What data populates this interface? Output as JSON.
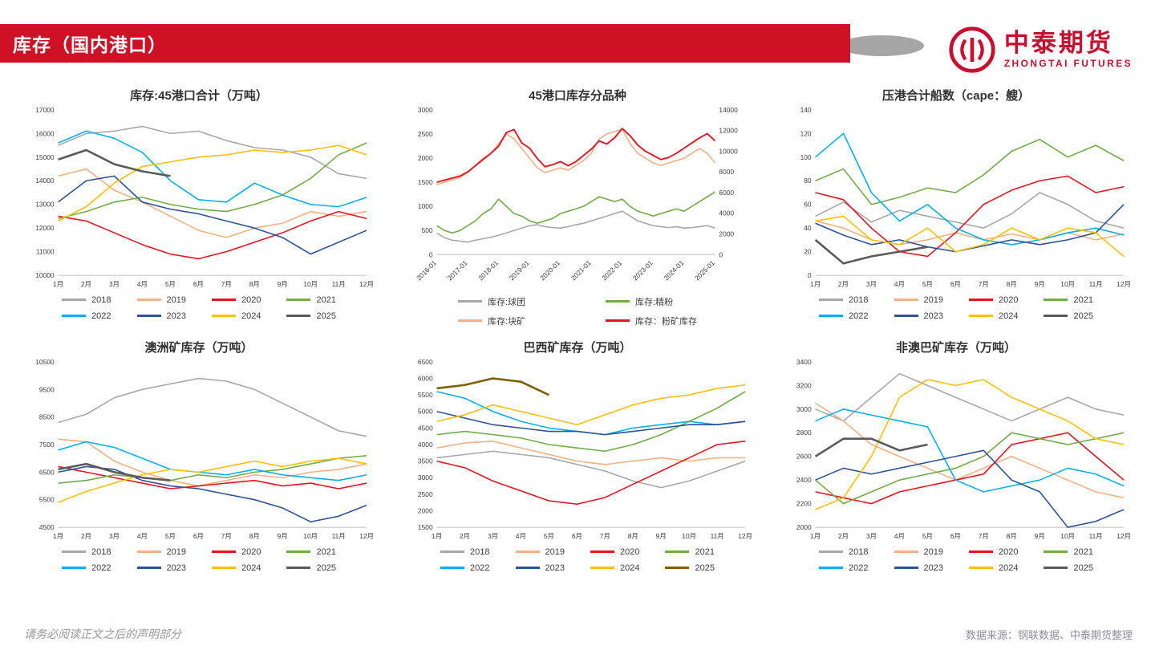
{
  "header": {
    "title": "库存（国内港口）",
    "brand_red": "#cf1125"
  },
  "logo": {
    "name_cn": "中泰期货",
    "name_en": "ZHONGTAI FUTURES",
    "color": "#c8102e"
  },
  "footer": {
    "disclaimer": "请务必阅读正文之后的声明部分",
    "source": "数据来源：钢联数据、中泰期货整理"
  },
  "chart_data": [
    {
      "id": "chart-45ports-total",
      "type": "line",
      "title": "库存:45港口合计（万吨）",
      "ylim": [
        10000,
        17000
      ],
      "y_ticks": [
        10000,
        11000,
        12000,
        13000,
        14000,
        15000,
        16000,
        17000
      ],
      "x_count": 12,
      "x_tick_labels": [
        "1月",
        "2月",
        "3月",
        "4月",
        "5月",
        "6月",
        "7月",
        "8月",
        "9月",
        "10月",
        "11月",
        "12月"
      ],
      "legend_cols": 4,
      "series": [
        {
          "name": "2018",
          "color": "#a8a8a8",
          "values": [
            15500,
            16000,
            16100,
            16300,
            16000,
            16100,
            15700,
            15400,
            15300,
            15000,
            14300,
            14100
          ]
        },
        {
          "name": "2019",
          "color": "#f4b183",
          "values": [
            14200,
            14500,
            13600,
            13100,
            12500,
            11900,
            11600,
            12000,
            12200,
            12700,
            12500,
            12700
          ]
        },
        {
          "name": "2020",
          "color": "#e8131f",
          "values": [
            12500,
            12300,
            11800,
            11300,
            10900,
            10700,
            11000,
            11400,
            11800,
            12300,
            12700,
            12400
          ]
        },
        {
          "name": "2021",
          "color": "#70ad47",
          "values": [
            12400,
            12700,
            13100,
            13300,
            13000,
            12800,
            12700,
            13000,
            13400,
            14100,
            15100,
            15600
          ]
        },
        {
          "name": "2022",
          "color": "#00b0f0",
          "values": [
            15600,
            16100,
            15800,
            15200,
            14000,
            13200,
            13100,
            13900,
            13400,
            13000,
            12900,
            13300
          ]
        },
        {
          "name": "2023",
          "color": "#2e5496",
          "values": [
            13100,
            14000,
            14200,
            13100,
            12800,
            12600,
            12300,
            12000,
            11600,
            10900,
            11400,
            11900
          ]
        },
        {
          "name": "2024",
          "color": "#ffc000",
          "values": [
            12300,
            12900,
            13900,
            14600,
            14800,
            15000,
            15100,
            15300,
            15200,
            15300,
            15500,
            15100
          ]
        },
        {
          "name": "2025",
          "color": "#5a5a5a",
          "width": 2.6,
          "values": [
            14900,
            15300,
            14700,
            14400,
            14200
          ]
        }
      ]
    },
    {
      "id": "chart-45ports-by-variety",
      "type": "line",
      "title": "45港口库存分品种",
      "ylim": [
        0,
        3000
      ],
      "y_ticks": [
        0,
        500,
        1000,
        1500,
        2000,
        2500,
        3000
      ],
      "y2lim": [
        0,
        14000
      ],
      "y2_ticks": [
        0,
        2000,
        4000,
        6000,
        8000,
        10000,
        12000,
        14000
      ],
      "x_count": 37,
      "x_tick_indices": [
        0,
        4,
        8,
        12,
        16,
        20,
        24,
        28,
        32,
        36
      ],
      "x_tick_labels": [
        "2016-01",
        "2017-01",
        "2018-01",
        "2019-01",
        "2020-01",
        "2021-01",
        "2022-01",
        "2023-01",
        "2024-01",
        "2025-01"
      ],
      "x_tick_rotate": 45,
      "legend_cols": 2,
      "series": [
        {
          "name": "库存:球团",
          "color": "#a8a8a8",
          "values": [
            450,
            350,
            300,
            280,
            260,
            300,
            330,
            360,
            400,
            450,
            500,
            550,
            600,
            620,
            580,
            560,
            550,
            580,
            620,
            650,
            700,
            750,
            800,
            850,
            900,
            800,
            700,
            650,
            600,
            580,
            560,
            580,
            550,
            560,
            580,
            600,
            550
          ]
        },
        {
          "name": "库存:精粉",
          "color": "#70ad47",
          "values": [
            600,
            500,
            450,
            500,
            600,
            700,
            850,
            950,
            1150,
            1000,
            850,
            800,
            700,
            650,
            700,
            750,
            850,
            900,
            950,
            1000,
            1100,
            1200,
            1150,
            1100,
            1150,
            1000,
            900,
            850,
            800,
            850,
            900,
            950,
            900,
            1000,
            1100,
            1200,
            1300
          ]
        },
        {
          "name": "库存:块矿",
          "color": "#f4b183",
          "values": [
            1450,
            1500,
            1550,
            1600,
            1700,
            1850,
            2000,
            2100,
            2300,
            2500,
            2400,
            2200,
            2000,
            1800,
            1700,
            1750,
            1800,
            1750,
            1850,
            1950,
            2100,
            2400,
            2500,
            2550,
            2600,
            2300,
            2100,
            2000,
            1900,
            1850,
            1900,
            1950,
            2000,
            2100,
            2200,
            2100,
            1900
          ]
        },
        {
          "name": "库存：粉矿库存",
          "color": "#e8131f",
          "axis": "right",
          "width": 1.9,
          "values": [
            7000,
            7200,
            7400,
            7600,
            8000,
            8600,
            9200,
            9800,
            10500,
            11800,
            12100,
            10800,
            10300,
            9300,
            8500,
            8700,
            9000,
            8600,
            9000,
            9600,
            10200,
            11000,
            10700,
            11300,
            12200,
            11500,
            10600,
            10000,
            9600,
            9200,
            9400,
            9800,
            10300,
            10800,
            11300,
            11700,
            11000
          ]
        }
      ]
    },
    {
      "id": "chart-cape-ships",
      "type": "line",
      "title": "压港合计船数（cape：艘）",
      "ylim": [
        0,
        140
      ],
      "y_ticks": [
        0,
        20,
        40,
        60,
        80,
        100,
        120,
        140
      ],
      "x_count": 12,
      "x_tick_labels": [
        "1月",
        "2月",
        "3月",
        "4月",
        "5月",
        "6月",
        "7月",
        "8月",
        "9月",
        "10月",
        "11月",
        "12月"
      ],
      "legend_cols": 4,
      "series": [
        {
          "name": "2018",
          "color": "#a8a8a8",
          "values": [
            50,
            62,
            45,
            55,
            50,
            45,
            40,
            52,
            70,
            60,
            46,
            40
          ]
        },
        {
          "name": "2019",
          "color": "#f4b183",
          "values": [
            46,
            40,
            30,
            26,
            30,
            36,
            30,
            35,
            30,
            36,
            30,
            35
          ]
        },
        {
          "name": "2020",
          "color": "#e8131f",
          "values": [
            70,
            64,
            40,
            20,
            16,
            36,
            60,
            72,
            80,
            84,
            70,
            75
          ]
        },
        {
          "name": "2021",
          "color": "#70ad47",
          "values": [
            80,
            90,
            60,
            66,
            74,
            70,
            85,
            105,
            115,
            100,
            110,
            97
          ]
        },
        {
          "name": "2022",
          "color": "#00b0f0",
          "values": [
            100,
            120,
            70,
            46,
            60,
            40,
            30,
            26,
            30,
            36,
            40,
            34
          ]
        },
        {
          "name": "2023",
          "color": "#2e5496",
          "values": [
            44,
            34,
            26,
            30,
            24,
            20,
            25,
            30,
            26,
            30,
            36,
            60
          ]
        },
        {
          "name": "2024",
          "color": "#ffc000",
          "values": [
            46,
            50,
            30,
            26,
            40,
            20,
            26,
            40,
            30,
            40,
            36,
            16
          ]
        },
        {
          "name": "2025",
          "color": "#5a5a5a",
          "width": 2.6,
          "values": [
            30,
            10,
            16,
            20,
            24
          ]
        }
      ]
    },
    {
      "id": "chart-australia-ore",
      "type": "line",
      "title": "澳洲矿库存（万吨）",
      "ylim": [
        4500,
        10500
      ],
      "y_ticks": [
        4500,
        5500,
        6500,
        7500,
        8500,
        9500,
        10500
      ],
      "x_count": 12,
      "x_tick_labels": [
        "1月",
        "2月",
        "3月",
        "4月",
        "5月",
        "6月",
        "7月",
        "8月",
        "9月",
        "10月",
        "11月",
        "12月"
      ],
      "legend_cols": 4,
      "series": [
        {
          "name": "2018",
          "color": "#a8a8a8",
          "values": [
            8300,
            8600,
            9200,
            9500,
            9700,
            9900,
            9800,
            9500,
            9000,
            8500,
            8000,
            7800
          ]
        },
        {
          "name": "2019",
          "color": "#f4b183",
          "values": [
            7700,
            7600,
            6900,
            6500,
            6200,
            6000,
            6200,
            6400,
            6300,
            6500,
            6600,
            6800
          ]
        },
        {
          "name": "2020",
          "color": "#e8131f",
          "values": [
            6700,
            6500,
            6300,
            6100,
            5900,
            6000,
            6100,
            6200,
            6000,
            6100,
            5900,
            6100
          ]
        },
        {
          "name": "2021",
          "color": "#70ad47",
          "values": [
            6100,
            6200,
            6400,
            6300,
            6200,
            6400,
            6300,
            6500,
            6600,
            6800,
            7000,
            7100
          ]
        },
        {
          "name": "2022",
          "color": "#00b0f0",
          "values": [
            7300,
            7600,
            7400,
            7000,
            6600,
            6500,
            6400,
            6600,
            6400,
            6300,
            6200,
            6400
          ]
        },
        {
          "name": "2023",
          "color": "#2e5496",
          "values": [
            6500,
            6700,
            6600,
            6200,
            6000,
            5900,
            5700,
            5500,
            5200,
            4700,
            4900,
            5300
          ]
        },
        {
          "name": "2024",
          "color": "#ffc000",
          "values": [
            5400,
            5800,
            6100,
            6400,
            6600,
            6500,
            6700,
            6900,
            6700,
            6900,
            7000,
            6800
          ]
        },
        {
          "name": "2025",
          "color": "#5a5a5a",
          "width": 2.6,
          "values": [
            6600,
            6800,
            6500,
            6300,
            6200
          ]
        }
      ]
    },
    {
      "id": "chart-brazil-ore",
      "type": "line",
      "title": "巴西矿库存（万吨）",
      "ylim": [
        1500,
        6500
      ],
      "y_ticks": [
        1500,
        2000,
        2500,
        3000,
        3500,
        4000,
        4500,
        5000,
        5500,
        6000,
        6500
      ],
      "x_count": 12,
      "x_tick_labels": [
        "1月",
        "2月",
        "3月",
        "4月",
        "5月",
        "6月",
        "7月",
        "8月",
        "9月",
        "10月",
        "11月",
        "12月"
      ],
      "legend_cols": 4,
      "series": [
        {
          "name": "2018",
          "color": "#a8a8a8",
          "values": [
            3600,
            3700,
            3800,
            3700,
            3600,
            3400,
            3200,
            2900,
            2700,
            2900,
            3200,
            3500
          ]
        },
        {
          "name": "2019",
          "color": "#f4b183",
          "values": [
            3900,
            4050,
            4100,
            3900,
            3700,
            3500,
            3400,
            3500,
            3600,
            3500,
            3600,
            3600
          ]
        },
        {
          "name": "2020",
          "color": "#e8131f",
          "values": [
            3500,
            3300,
            2900,
            2600,
            2300,
            2200,
            2400,
            2800,
            3200,
            3600,
            4000,
            4100
          ]
        },
        {
          "name": "2021",
          "color": "#70ad47",
          "values": [
            4300,
            4400,
            4300,
            4200,
            4000,
            3900,
            3800,
            4000,
            4300,
            4700,
            5100,
            5600
          ]
        },
        {
          "name": "2022",
          "color": "#00b0f0",
          "values": [
            5600,
            5400,
            5000,
            4700,
            4500,
            4400,
            4300,
            4500,
            4600,
            4700,
            4600,
            4700
          ]
        },
        {
          "name": "2023",
          "color": "#2e5496",
          "values": [
            5000,
            4800,
            4600,
            4500,
            4400,
            4400,
            4300,
            4400,
            4500,
            4600,
            4600,
            4700
          ]
        },
        {
          "name": "2024",
          "color": "#ffc000",
          "values": [
            4700,
            4900,
            5200,
            5000,
            4800,
            4600,
            4900,
            5200,
            5400,
            5500,
            5700,
            5800
          ]
        },
        {
          "name": "2025",
          "color": "#7f6000",
          "width": 2.6,
          "values": [
            5700,
            5800,
            6000,
            5900,
            5500
          ]
        }
      ]
    },
    {
      "id": "chart-non-aus-brazil-ore",
      "type": "line",
      "title": "非澳巴矿库存（万吨）",
      "ylim": [
        2000,
        3400
      ],
      "y_ticks": [
        2000,
        2200,
        2400,
        2600,
        2800,
        3000,
        3200,
        3400
      ],
      "x_count": 12,
      "x_tick_labels": [
        "1月",
        "2月",
        "3月",
        "4月",
        "5月",
        "6月",
        "7月",
        "8月",
        "9月",
        "10月",
        "11月",
        "12月"
      ],
      "legend_cols": 4,
      "series": [
        {
          "name": "2018",
          "color": "#a8a8a8",
          "values": [
            3000,
            2900,
            3100,
            3300,
            3200,
            3100,
            3000,
            2900,
            3000,
            3100,
            3000,
            2950
          ]
        },
        {
          "name": "2019",
          "color": "#f4b183",
          "values": [
            3050,
            2900,
            2700,
            2600,
            2500,
            2400,
            2500,
            2600,
            2500,
            2400,
            2300,
            2250
          ]
        },
        {
          "name": "2020",
          "color": "#e8131f",
          "values": [
            2300,
            2250,
            2200,
            2300,
            2350,
            2400,
            2450,
            2700,
            2750,
            2800,
            2600,
            2400
          ]
        },
        {
          "name": "2021",
          "color": "#70ad47",
          "values": [
            2400,
            2200,
            2300,
            2400,
            2450,
            2500,
            2600,
            2800,
            2750,
            2700,
            2750,
            2800
          ]
        },
        {
          "name": "2022",
          "color": "#00b0f0",
          "values": [
            2900,
            3000,
            2950,
            2900,
            2850,
            2400,
            2300,
            2350,
            2400,
            2500,
            2450,
            2350
          ]
        },
        {
          "name": "2023",
          "color": "#2e5496",
          "values": [
            2400,
            2500,
            2450,
            2500,
            2550,
            2600,
            2650,
            2400,
            2300,
            2000,
            2050,
            2150
          ]
        },
        {
          "name": "2024",
          "color": "#ffc000",
          "values": [
            2150,
            2250,
            2600,
            3100,
            3250,
            3200,
            3250,
            3100,
            3000,
            2900,
            2750,
            2700
          ]
        },
        {
          "name": "2025",
          "color": "#5a5a5a",
          "width": 2.6,
          "values": [
            2600,
            2750,
            2750,
            2650,
            2700
          ]
        }
      ]
    }
  ]
}
